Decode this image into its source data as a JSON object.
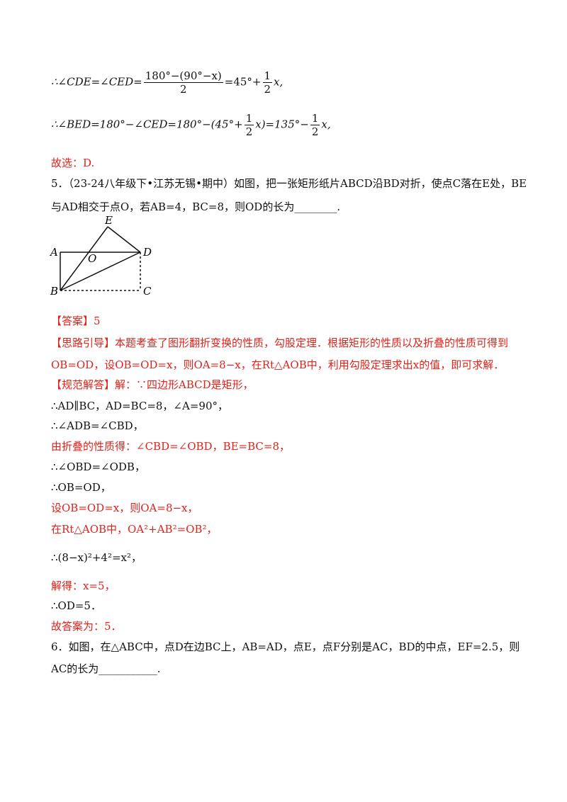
{
  "prev_solution": {
    "line1": {
      "a": "∴∠CDE=∠CED=",
      "f1_num": "180°−(90°−x)",
      "f1_den": "2",
      "b": "=45°+",
      "f2_num": "1",
      "f2_den": "2",
      "c": "x,"
    },
    "line2": {
      "a": "∴∠BED=180°−∠CED=180°−(45°+",
      "f1_num": "1",
      "f1_den": "2",
      "b": "x)=135°−",
      "f2_num": "1",
      "f2_den": "2",
      "c": "x,"
    },
    "choice": "故选：D."
  },
  "q5": {
    "line1": "5．（23-24八年级下•江苏无锡•期中）如图，把一张矩形纸片ABCD沿BD对折，使点C落在E处，BE",
    "line2": "与AD相交于点O，若AB=4，BC=8，则OD的长为________.",
    "figure": {
      "E": "E",
      "A": "A",
      "O": "O",
      "D": "D",
      "B": "B",
      "C": "C"
    },
    "answer_label": "【答案】",
    "answer": "5",
    "hint_label": "【思路引导】",
    "hint_line1": "本题考查了图形翻折变换的性质，勾股定理．根据矩形的性质以及折叠的性质可得到",
    "hint_line2": "OB=OD，设OB=OD=x，则OA=8−x，在Rt△AOB中，利用勾股定理求出x的值，即可求解．",
    "solution_label": "【规范解答】",
    "solution": [
      "解：∵四边形ABCD是矩形，",
      "∴AD∥BC，AD=BC=8，∠A=90°，",
      "∴∠ADB=∠CBD，",
      "由折叠的性质得：∠CBD=∠OBD，BE=BC=8，",
      "∴∠OBD=∠ODB，",
      "∴OB=OD，",
      "设OB=OD=x，则OA=8−x，",
      "在Rt△AOB中，OA²+AB²=OB²，",
      "∴(8−x)²+4²=x²，",
      "解得：x=5，",
      "∴OD=5．",
      "故答案为：5．"
    ]
  },
  "q6": {
    "line1": "6．如图，在△ABC中，点D在边BC上，AB=AD，点E，点F分别是AC，BD的中点，EF=2.5，则",
    "line2": "AC的长为___________."
  }
}
